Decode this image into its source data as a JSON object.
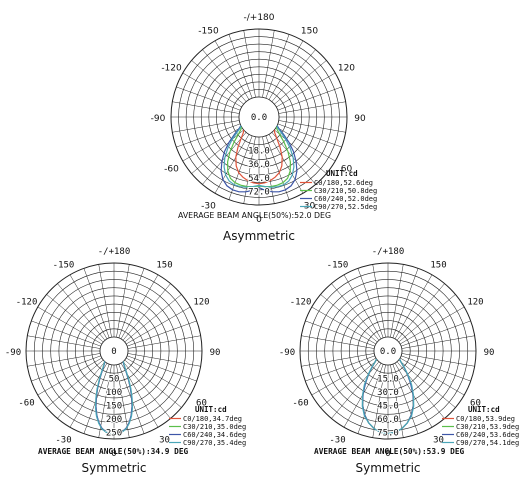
{
  "chart_data": [
    {
      "type": "polar-line",
      "caption": "Asymmetric",
      "angle_labels": [
        "-/+180",
        "150",
        "120",
        "90",
        "60",
        "30",
        "0",
        "-30",
        "-60",
        "-90",
        "-120",
        "-150"
      ],
      "radial_ticks": [
        "0.0",
        "18.0",
        "36.0",
        "54.0",
        "72.0"
      ],
      "radial_max": 90,
      "unit_label": "UNIT:cd",
      "summary": "AVERAGE BEAM ANGLE(50%):52.0 DEG",
      "series": [
        {
          "name": "C0/180,52.6deg",
          "color": "#e0533a",
          "points": [
            [
              0,
              62
            ],
            [
              5,
              61
            ],
            [
              10,
              59
            ],
            [
              15,
              56
            ],
            [
              20,
              52
            ],
            [
              25,
              45
            ],
            [
              30,
              35
            ],
            [
              35,
              22
            ],
            [
              40,
              10
            ],
            [
              45,
              3
            ],
            [
              50,
              0
            ]
          ]
        },
        {
          "name": "C30/210,50.8deg",
          "color": "#5bbf4a",
          "points": [
            [
              0,
              65
            ],
            [
              5,
              66
            ],
            [
              10,
              67
            ],
            [
              15,
              67
            ],
            [
              20,
              66
            ],
            [
              25,
              63
            ],
            [
              30,
              56
            ],
            [
              35,
              46
            ],
            [
              40,
              33
            ],
            [
              45,
              20
            ],
            [
              50,
              9
            ],
            [
              55,
              3
            ],
            [
              60,
              0
            ]
          ]
        },
        {
          "name": "C60/240,52.0deg",
          "color": "#3d56a8",
          "points": [
            [
              0,
              67
            ],
            [
              5,
              71
            ],
            [
              10,
              74
            ],
            [
              15,
              76
            ],
            [
              20,
              76
            ],
            [
              25,
              74
            ],
            [
              30,
              69
            ],
            [
              35,
              61
            ],
            [
              40,
              50
            ],
            [
              45,
              38
            ],
            [
              50,
              25
            ],
            [
              55,
              13
            ],
            [
              60,
              4
            ],
            [
              65,
              0
            ]
          ]
        },
        {
          "name": "C90/270,52.5deg",
          "color": "#4aa6b8",
          "points": [
            [
              0,
              64
            ],
            [
              5,
              66
            ],
            [
              10,
              68
            ],
            [
              15,
              69
            ],
            [
              20,
              69
            ],
            [
              25,
              67
            ],
            [
              30,
              62
            ],
            [
              35,
              54
            ],
            [
              40,
              44
            ],
            [
              45,
              32
            ],
            [
              50,
              20
            ],
            [
              55,
              9
            ],
            [
              60,
              2
            ],
            [
              65,
              0
            ]
          ]
        }
      ]
    },
    {
      "type": "polar-line",
      "caption": "Symmetric",
      "angle_labels": [
        "-/+180",
        "150",
        "120",
        "90",
        "60",
        "30",
        "0",
        "-30",
        "-60",
        "-90",
        "-120",
        "-150"
      ],
      "radial_ticks": [
        "0",
        "50",
        "100",
        "150",
        "200",
        "250"
      ],
      "radial_max": 275,
      "unit_label": "UNIT:cd",
      "summary": "AVERAGE BEAM ANGLE(50%):34.9 DEG",
      "series": [
        {
          "name": "C0/180,34.7deg",
          "color": "#e0533a",
          "points": [
            [
              0,
              258
            ],
            [
              3,
              256
            ],
            [
              6,
              250
            ],
            [
              9,
              238
            ],
            [
              12,
              220
            ],
            [
              15,
              196
            ],
            [
              18,
              166
            ],
            [
              21,
              132
            ],
            [
              24,
              98
            ],
            [
              27,
              66
            ],
            [
              30,
              40
            ],
            [
              34,
              18
            ],
            [
              38,
              6
            ],
            [
              42,
              0
            ]
          ]
        },
        {
          "name": "C30/210,35.0deg",
          "color": "#5bbf4a",
          "points": [
            [
              0,
              258
            ],
            [
              3,
              256
            ],
            [
              6,
              250
            ],
            [
              9,
              239
            ],
            [
              12,
              221
            ],
            [
              15,
              197
            ],
            [
              18,
              168
            ],
            [
              21,
              134
            ],
            [
              24,
              100
            ],
            [
              27,
              68
            ],
            [
              30,
              41
            ],
            [
              34,
              19
            ],
            [
              38,
              6
            ],
            [
              42,
              0
            ]
          ]
        },
        {
          "name": "C60/240,34.6deg",
          "color": "#3d56a8",
          "points": [
            [
              0,
              258
            ],
            [
              3,
              256
            ],
            [
              6,
              249
            ],
            [
              9,
              238
            ],
            [
              12,
              219
            ],
            [
              15,
              195
            ],
            [
              18,
              165
            ],
            [
              21,
              131
            ],
            [
              24,
              97
            ],
            [
              27,
              65
            ],
            [
              30,
              39
            ],
            [
              34,
              17
            ],
            [
              38,
              5
            ],
            [
              42,
              0
            ]
          ]
        },
        {
          "name": "C90/270,35.4deg",
          "color": "#4aa6b8",
          "points": [
            [
              0,
              258
            ],
            [
              3,
              256
            ],
            [
              6,
              250
            ],
            [
              9,
              240
            ],
            [
              12,
              222
            ],
            [
              15,
              199
            ],
            [
              18,
              170
            ],
            [
              21,
              136
            ],
            [
              24,
              102
            ],
            [
              27,
              70
            ],
            [
              30,
              43
            ],
            [
              34,
              20
            ],
            [
              38,
              7
            ],
            [
              42,
              0
            ]
          ]
        }
      ]
    },
    {
      "type": "polar-line",
      "caption": "Symmetric",
      "angle_labels": [
        "-/+180",
        "150",
        "120",
        "90",
        "60",
        "30",
        "0",
        "-30",
        "-60",
        "-90",
        "-120",
        "-150"
      ],
      "radial_ticks": [
        "0.0",
        "15.0",
        "30.0",
        "45.0",
        "60.0",
        "75.0"
      ],
      "radial_max": 82,
      "unit_label": "UNIT:cd",
      "summary": "AVERAGE BEAM ANGLE(50%):53.9 DEG",
      "series": [
        {
          "name": "C0/180,53.9deg",
          "color": "#e0533a",
          "points": [
            [
              0,
              76
            ],
            [
              5,
              75
            ],
            [
              10,
              72
            ],
            [
              15,
              67
            ],
            [
              20,
              60
            ],
            [
              25,
              51
            ],
            [
              30,
              40
            ],
            [
              35,
              29
            ],
            [
              40,
              18
            ],
            [
              45,
              9
            ],
            [
              50,
              3
            ],
            [
              55,
              0
            ]
          ]
        },
        {
          "name": "C30/210,53.9deg",
          "color": "#5bbf4a",
          "points": [
            [
              0,
              76
            ],
            [
              5,
              75
            ],
            [
              10,
              72
            ],
            [
              15,
              67
            ],
            [
              20,
              60
            ],
            [
              25,
              51
            ],
            [
              30,
              40
            ],
            [
              35,
              29
            ],
            [
              40,
              18
            ],
            [
              45,
              9
            ],
            [
              50,
              3
            ],
            [
              55,
              0
            ]
          ]
        },
        {
          "name": "C60/240,53.6deg",
          "color": "#3d56a8",
          "points": [
            [
              0,
              76
            ],
            [
              5,
              75
            ],
            [
              10,
              72
            ],
            [
              15,
              67
            ],
            [
              20,
              60
            ],
            [
              25,
              51
            ],
            [
              30,
              40
            ],
            [
              35,
              28
            ],
            [
              40,
              18
            ],
            [
              45,
              9
            ],
            [
              50,
              3
            ],
            [
              55,
              0
            ]
          ]
        },
        {
          "name": "C90/270,54.1deg",
          "color": "#4aa6b8",
          "points": [
            [
              0,
              76
            ],
            [
              5,
              75
            ],
            [
              10,
              72
            ],
            [
              15,
              67
            ],
            [
              20,
              61
            ],
            [
              25,
              52
            ],
            [
              30,
              41
            ],
            [
              35,
              30
            ],
            [
              40,
              19
            ],
            [
              45,
              10
            ],
            [
              50,
              3
            ],
            [
              55,
              0
            ]
          ]
        }
      ]
    }
  ]
}
